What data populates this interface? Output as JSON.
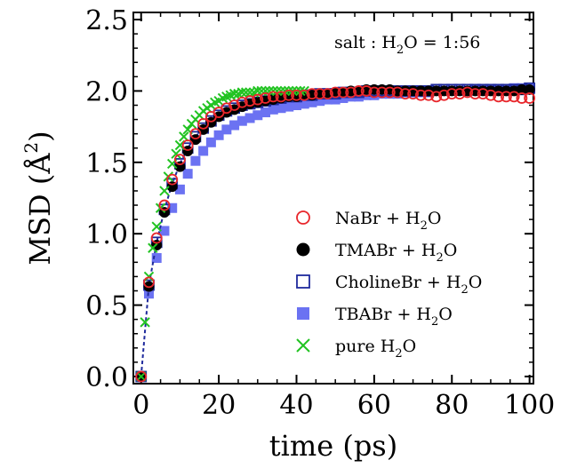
{
  "chart_data": {
    "type": "scatter",
    "xlabel": "time (ps)",
    "ylabel": "MSD (Å²)",
    "ylabel_parts": {
      "main": "MSD (Å",
      "sup": "2",
      "close": ")"
    },
    "annotation": {
      "text": "salt : H₂O = 1:56",
      "pre": "salt : H",
      "sub": "2",
      "post": "O = 1:56"
    },
    "xlim": [
      -2,
      101
    ],
    "ylim": [
      -0.05,
      2.55
    ],
    "xticks": [
      0,
      20,
      40,
      60,
      80,
      100
    ],
    "xtick_labels": [
      "0",
      "20",
      "40",
      "60",
      "80",
      "100"
    ],
    "yticks": [
      0.0,
      0.5,
      1.0,
      1.5,
      2.0,
      2.5
    ],
    "ytick_labels": [
      "0.0",
      "0.5",
      "1.0",
      "1.5",
      "2.0",
      "2.5"
    ],
    "grid": false,
    "legend_position": "center-right",
    "series": [
      {
        "name": "NaBr + H₂O",
        "label_pre": "NaBr + H",
        "label_sub": "2",
        "label_post": "O",
        "marker": "open-circle",
        "color": "#e8262b",
        "x": [
          0,
          2,
          4,
          6,
          8,
          10,
          12,
          14,
          16,
          18,
          20,
          22,
          24,
          26,
          28,
          30,
          32,
          34,
          36,
          38,
          40,
          42,
          44,
          46,
          48,
          50,
          52,
          54,
          56,
          58,
          60,
          62,
          64,
          66,
          68,
          70,
          72,
          74,
          76,
          78,
          80,
          82,
          84,
          86,
          88,
          90,
          92,
          94,
          96,
          98,
          100
        ],
        "y": [
          0.0,
          0.66,
          0.97,
          1.2,
          1.38,
          1.52,
          1.62,
          1.7,
          1.77,
          1.82,
          1.85,
          1.88,
          1.9,
          1.92,
          1.93,
          1.94,
          1.95,
          1.96,
          1.96,
          1.97,
          1.97,
          1.97,
          1.98,
          1.98,
          1.98,
          1.99,
          1.99,
          1.99,
          2.0,
          2.0,
          1.99,
          1.99,
          1.99,
          1.99,
          1.98,
          1.98,
          1.97,
          1.97,
          1.96,
          1.97,
          1.98,
          1.98,
          1.99,
          1.98,
          1.98,
          1.97,
          1.96,
          1.96,
          1.96,
          1.95,
          1.95
        ]
      },
      {
        "name": "TMABr + H₂O",
        "label_pre": "TMABr + H",
        "label_sub": "2",
        "label_post": "O",
        "marker": "filled-circle",
        "color": "#000000",
        "x": [
          0,
          2,
          4,
          6,
          8,
          10,
          12,
          14,
          16,
          18,
          20,
          22,
          24,
          26,
          28,
          30,
          32,
          34,
          36,
          38,
          40,
          42,
          44,
          46,
          48,
          50,
          52,
          54,
          56,
          58,
          60,
          62,
          64,
          66,
          68,
          70,
          72,
          74,
          76,
          78,
          80,
          82,
          84,
          86,
          88,
          90,
          92,
          94,
          96,
          98,
          100
        ],
        "y": [
          0.0,
          0.63,
          0.92,
          1.15,
          1.33,
          1.47,
          1.58,
          1.66,
          1.73,
          1.78,
          1.82,
          1.85,
          1.87,
          1.89,
          1.91,
          1.92,
          1.93,
          1.94,
          1.95,
          1.96,
          1.96,
          1.97,
          1.97,
          1.98,
          1.98,
          1.99,
          1.99,
          2.0,
          2.0,
          2.01,
          2.01,
          2.01,
          2.01,
          2.0,
          2.0,
          2.0,
          2.0,
          2.0,
          2.0,
          2.0,
          2.0,
          2.0,
          2.0,
          2.0,
          2.0,
          2.0,
          2.0,
          2.0,
          2.0,
          2.01,
          2.01
        ]
      },
      {
        "name": "CholineBr + H₂O",
        "label_pre": "CholineBr + H",
        "label_sub": "2",
        "label_post": "O",
        "marker": "open-square",
        "color": "#1f2a9c",
        "x": [
          0,
          2,
          4,
          6,
          8,
          10,
          12,
          14,
          16,
          18,
          20,
          22,
          24,
          26,
          28,
          30,
          32,
          34,
          36,
          38,
          40,
          42,
          44,
          46,
          48,
          50,
          52,
          54,
          56,
          58,
          60,
          62,
          64,
          66,
          68,
          70,
          72,
          74,
          76,
          78,
          80,
          82,
          84,
          86,
          88,
          90,
          92,
          94,
          96,
          98,
          100
        ],
        "y": [
          0.0,
          0.64,
          0.94,
          1.17,
          1.35,
          1.49,
          1.6,
          1.68,
          1.74,
          1.79,
          1.83,
          1.86,
          1.88,
          1.9,
          1.91,
          1.92,
          1.93,
          1.94,
          1.95,
          1.96,
          1.96,
          1.97,
          1.97,
          1.98,
          1.98,
          1.98,
          1.99,
          1.99,
          1.99,
          2.0,
          2.0,
          2.0,
          2.0,
          2.0,
          2.0,
          2.0,
          2.0,
          2.0,
          2.01,
          2.01,
          2.01,
          2.01,
          2.01,
          2.01,
          2.01,
          2.01,
          2.01,
          2.01,
          2.01,
          2.01,
          2.02
        ]
      },
      {
        "name": "TBABr + H₂O",
        "label_pre": "TBABr + H",
        "label_sub": "2",
        "label_post": "O",
        "marker": "filled-square",
        "color": "#6b72f2",
        "x": [
          0,
          2,
          4,
          6,
          8,
          10,
          12,
          14,
          16,
          18,
          20,
          22,
          24,
          26,
          28,
          30,
          32,
          34,
          36,
          38,
          40,
          42,
          44,
          46,
          48,
          50,
          52,
          54,
          56,
          58,
          60,
          62,
          64,
          66,
          68,
          70,
          72,
          74,
          76,
          78,
          80,
          82,
          84,
          86,
          88,
          90,
          92,
          94,
          96,
          98,
          100
        ],
        "y": [
          0.0,
          0.58,
          0.83,
          1.02,
          1.18,
          1.31,
          1.42,
          1.51,
          1.58,
          1.64,
          1.69,
          1.73,
          1.76,
          1.79,
          1.81,
          1.83,
          1.85,
          1.87,
          1.88,
          1.89,
          1.9,
          1.91,
          1.92,
          1.93,
          1.94,
          1.94,
          1.95,
          1.96,
          1.96,
          1.97,
          1.97,
          1.98,
          1.98,
          1.98,
          1.99,
          1.99,
          1.99,
          1.99,
          2.0,
          2.0,
          2.0,
          2.0,
          2.0,
          2.01,
          2.01,
          2.01,
          2.01,
          2.01,
          2.02,
          2.02,
          2.02
        ]
      },
      {
        "name": "pure H₂O",
        "label_pre": "pure H",
        "label_sub": "2",
        "label_post": "O",
        "marker": "cross",
        "color": "#22c322",
        "x": [
          0,
          1,
          2,
          3,
          4,
          5,
          6,
          7,
          8,
          9,
          10,
          11,
          12,
          13,
          14,
          15,
          16,
          17,
          18,
          19,
          20,
          21,
          22,
          23,
          24,
          25,
          26,
          27,
          28,
          29,
          30,
          31,
          32,
          33,
          34,
          35,
          36,
          37,
          38,
          39,
          40,
          41,
          42
        ],
        "y": [
          0.0,
          0.38,
          0.7,
          0.9,
          1.05,
          1.18,
          1.3,
          1.4,
          1.49,
          1.56,
          1.62,
          1.68,
          1.73,
          1.77,
          1.8,
          1.83,
          1.86,
          1.88,
          1.9,
          1.92,
          1.93,
          1.95,
          1.96,
          1.97,
          1.98,
          1.98,
          1.99,
          1.99,
          1.99,
          1.99,
          2.0,
          2.0,
          2.0,
          2.0,
          2.0,
          2.0,
          2.0,
          2.0,
          2.0,
          2.0,
          2.0,
          2.0,
          2.0
        ]
      }
    ]
  }
}
